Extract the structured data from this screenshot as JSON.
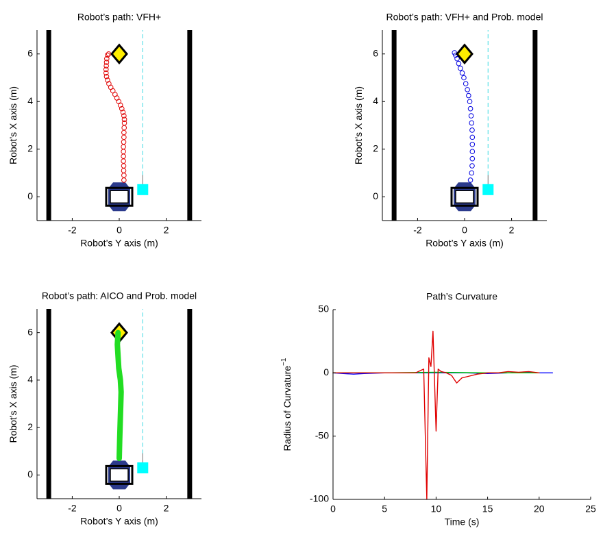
{
  "chart_data": [
    {
      "type": "line",
      "title": "Robot’s path: VFH+",
      "x_label": "Robot’s Y axis (m)",
      "y_label": "Robot’s X axis (m)",
      "xlim": [
        -3.5,
        3.5
      ],
      "ylim": [
        -1,
        7
      ],
      "xticks": [
        -2,
        0,
        2
      ],
      "yticks": [
        0,
        2,
        4,
        6
      ],
      "series": [
        {
          "style": "wall",
          "color": "#000000",
          "x": [
            -3,
            -3
          ],
          "values": [
            -1,
            7
          ]
        },
        {
          "style": "wall",
          "color": "#000000",
          "x": [
            3,
            3
          ],
          "values": [
            -1,
            7
          ]
        },
        {
          "style": "dashed",
          "color": "#5fe0e8",
          "x": [
            1,
            1
          ],
          "values": [
            0.9,
            7
          ]
        },
        {
          "style": "arrow",
          "color": "#888888",
          "x": [
            1,
            1
          ],
          "values": [
            0.9,
            0.5
          ]
        },
        {
          "style": "square",
          "color": "#00ffff",
          "x": [
            1
          ],
          "values": [
            0.3
          ]
        },
        {
          "style": "robot",
          "color": "#2b3a8c",
          "x": [
            0
          ],
          "values": [
            0
          ]
        },
        {
          "style": "circles",
          "color": "#e00000",
          "x": [
            0.2,
            0.2,
            0.19,
            0.19,
            0.18,
            0.18,
            0.18,
            0.18,
            0.19,
            0.2,
            0.2,
            0.21,
            0.22,
            0.22,
            0.2,
            0.16,
            0.11,
            0.05,
            -0.02,
            -0.1,
            -0.18,
            -0.27,
            -0.36,
            -0.44,
            -0.5,
            -0.54,
            -0.56,
            -0.56,
            -0.55,
            -0.54,
            -0.53,
            -0.5,
            -0.45
          ],
          "values": [
            0.7,
            0.9,
            1.1,
            1.3,
            1.5,
            1.7,
            1.9,
            2.1,
            2.3,
            2.5,
            2.7,
            2.9,
            3.1,
            3.25,
            3.4,
            3.55,
            3.7,
            3.85,
            4.0,
            4.15,
            4.3,
            4.45,
            4.6,
            4.75,
            4.9,
            5.05,
            5.2,
            5.35,
            5.5,
            5.65,
            5.8,
            5.95,
            6.0
          ]
        },
        {
          "style": "diamond",
          "color": "#ffee00",
          "x": [
            0
          ],
          "values": [
            6
          ]
        }
      ]
    },
    {
      "type": "line",
      "title": "Robot’s path: VFH+ and Prob. model",
      "x_label": "Robot’s Y axis (m)",
      "y_label": "Robot’s X axis (m)",
      "xlim": [
        -3.5,
        3.5
      ],
      "ylim": [
        -1,
        7
      ],
      "xticks": [
        -2,
        0,
        2
      ],
      "yticks": [
        0,
        2,
        4,
        6
      ],
      "series": [
        {
          "style": "wall",
          "color": "#000000",
          "x": [
            -3,
            -3
          ],
          "values": [
            -1,
            7
          ]
        },
        {
          "style": "wall",
          "color": "#000000",
          "x": [
            3,
            3
          ],
          "values": [
            -1,
            7
          ]
        },
        {
          "style": "dashed",
          "color": "#5fe0e8",
          "x": [
            1,
            1
          ],
          "values": [
            0.9,
            7
          ]
        },
        {
          "style": "arrow",
          "color": "#888888",
          "x": [
            1,
            1
          ],
          "values": [
            0.9,
            0.5
          ]
        },
        {
          "style": "square",
          "color": "#00ffff",
          "x": [
            1
          ],
          "values": [
            0.3
          ]
        },
        {
          "style": "robot",
          "color": "#2b3a8c",
          "x": [
            0
          ],
          "values": [
            0
          ]
        },
        {
          "style": "circles",
          "color": "#0000e0",
          "x": [
            0.25,
            0.3,
            0.32,
            0.33,
            0.33,
            0.33,
            0.33,
            0.32,
            0.3,
            0.28,
            0.25,
            0.22,
            0.17,
            0.12,
            0.05,
            -0.03,
            -0.1,
            -0.18,
            -0.25,
            -0.32,
            -0.38,
            -0.43
          ],
          "values": [
            0.7,
            1.0,
            1.3,
            1.6,
            1.9,
            2.2,
            2.5,
            2.8,
            3.1,
            3.4,
            3.7,
            4.0,
            4.25,
            4.5,
            4.75,
            5.0,
            5.2,
            5.4,
            5.6,
            5.8,
            5.95,
            6.05
          ]
        },
        {
          "style": "diamond",
          "color": "#ffee00",
          "x": [
            0
          ],
          "values": [
            6
          ]
        }
      ]
    },
    {
      "type": "line",
      "title": "Robot’s path: AICO and Prob. model",
      "x_label": "Robot’s Y axis (m)",
      "y_label": "Robot’s X axis (m)",
      "xlim": [
        -3.5,
        3.5
      ],
      "ylim": [
        -1,
        7
      ],
      "xticks": [
        -2,
        0,
        2
      ],
      "yticks": [
        0,
        2,
        4,
        6
      ],
      "series": [
        {
          "style": "wall",
          "color": "#000000",
          "x": [
            -3,
            -3
          ],
          "values": [
            -1,
            7
          ]
        },
        {
          "style": "wall",
          "color": "#000000",
          "x": [
            3,
            3
          ],
          "values": [
            -1,
            7
          ]
        },
        {
          "style": "dashed",
          "color": "#5fe0e8",
          "x": [
            1,
            1
          ],
          "values": [
            0.9,
            7
          ]
        },
        {
          "style": "arrow",
          "color": "#888888",
          "x": [
            1,
            1
          ],
          "values": [
            0.9,
            0.5
          ]
        },
        {
          "style": "square",
          "color": "#00ffff",
          "x": [
            1
          ],
          "values": [
            0.3
          ]
        },
        {
          "style": "robot",
          "color": "#2b3a8c",
          "x": [
            0
          ],
          "values": [
            0
          ]
        },
        {
          "style": "diamond",
          "color": "#ffee00",
          "x": [
            0
          ],
          "values": [
            6
          ]
        },
        {
          "style": "thick",
          "color": "#22dd22",
          "x": [
            0,
            0.02,
            0.05,
            0.08,
            0.05,
            -0.02,
            -0.05,
            -0.08,
            -0.05
          ],
          "values": [
            0.7,
            1.5,
            2.5,
            3.5,
            4,
            4.5,
            5,
            5.5,
            6
          ]
        }
      ]
    },
    {
      "type": "line",
      "title": "Path’s Curvature",
      "x_label": "Time (s)",
      "y_label": "Radius of Curvature",
      "y_label_superscript": "−1",
      "xlim": [
        0,
        25
      ],
      "ylim": [
        -100,
        50
      ],
      "xticks": [
        0,
        5,
        10,
        15,
        20,
        25
      ],
      "yticks": [
        -100,
        -50,
        0,
        50
      ],
      "series": [
        {
          "style": "thin",
          "color": "#0000ff",
          "x": [
            0,
            1,
            2,
            3,
            5,
            7,
            9,
            11,
            13,
            15,
            17,
            19,
            20,
            21.3
          ],
          "values": [
            0,
            -0.5,
            -1,
            -0.5,
            0,
            0,
            0,
            0,
            0,
            -0.5,
            0,
            0.5,
            0,
            0
          ]
        },
        {
          "style": "thin",
          "color": "#00cc00",
          "x": [
            0,
            5,
            10,
            15,
            20
          ],
          "values": [
            0,
            0,
            0.5,
            0,
            0
          ]
        },
        {
          "style": "thin",
          "color": "#e00000",
          "x": [
            0,
            2,
            4,
            6,
            8,
            8.8,
            9.1,
            9.3,
            9.5,
            9.7,
            10.0,
            10.2,
            10.5,
            11,
            11.5,
            12,
            12.5,
            13,
            14,
            15,
            16,
            17,
            18,
            19,
            20
          ],
          "values": [
            0,
            0,
            0,
            0,
            0,
            3,
            -100,
            12,
            5,
            33,
            -46,
            3,
            1,
            0,
            -2,
            -8,
            -4,
            -3,
            -1,
            0,
            0,
            1,
            0.5,
            1,
            0
          ]
        }
      ]
    }
  ]
}
